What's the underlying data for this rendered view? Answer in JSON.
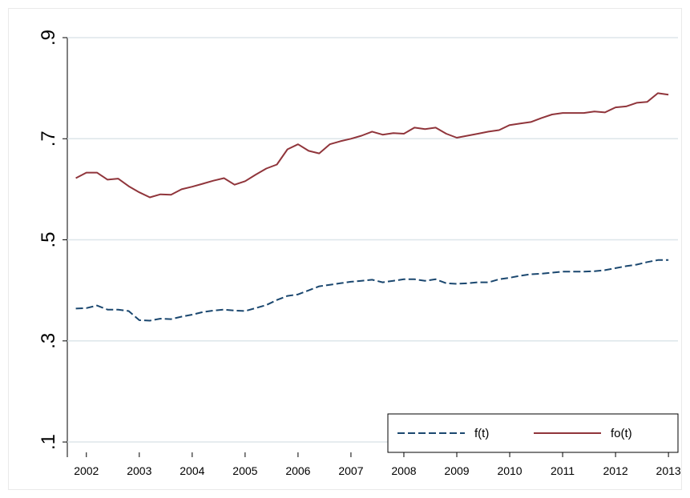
{
  "chart_data": {
    "type": "line",
    "x": [
      2001.8,
      2002,
      2002.2,
      2002.4,
      2002.6,
      2002.8,
      2003,
      2003.2,
      2003.4,
      2003.6,
      2003.8,
      2004,
      2004.2,
      2004.4,
      2004.6,
      2004.8,
      2005,
      2005.2,
      2005.4,
      2005.6,
      2005.8,
      2006,
      2006.2,
      2006.4,
      2006.6,
      2006.8,
      2007,
      2007.2,
      2007.4,
      2007.6,
      2007.8,
      2008,
      2008.2,
      2008.4,
      2008.6,
      2008.8,
      2009,
      2009.2,
      2009.4,
      2009.6,
      2009.8,
      2010,
      2010.2,
      2010.4,
      2010.6,
      2010.8,
      2011,
      2011.2,
      2011.4,
      2011.6,
      2011.8,
      2012,
      2012.2,
      2012.4,
      2012.6,
      2012.8,
      2013
    ],
    "series": [
      {
        "name": "f(t)",
        "color": "#1a476f",
        "dashed": true,
        "values": [
          0.364,
          0.365,
          0.37,
          0.362,
          0.362,
          0.359,
          0.341,
          0.34,
          0.344,
          0.343,
          0.348,
          0.352,
          0.357,
          0.36,
          0.362,
          0.36,
          0.359,
          0.365,
          0.371,
          0.381,
          0.389,
          0.392,
          0.4,
          0.408,
          0.411,
          0.414,
          0.417,
          0.419,
          0.421,
          0.416,
          0.419,
          0.422,
          0.422,
          0.419,
          0.422,
          0.414,
          0.413,
          0.414,
          0.416,
          0.416,
          0.422,
          0.425,
          0.429,
          0.432,
          0.433,
          0.435,
          0.437,
          0.437,
          0.437,
          0.438,
          0.44,
          0.444,
          0.448,
          0.451,
          0.456,
          0.46,
          0.46
        ]
      },
      {
        "name": "fo(t)",
        "color": "#90353b",
        "dashed": false,
        "values": [
          0.622,
          0.633,
          0.633,
          0.619,
          0.621,
          0.606,
          0.594,
          0.584,
          0.59,
          0.589,
          0.6,
          0.605,
          0.611,
          0.617,
          0.622,
          0.609,
          0.616,
          0.629,
          0.641,
          0.649,
          0.679,
          0.689,
          0.676,
          0.671,
          0.689,
          0.695,
          0.7,
          0.706,
          0.714,
          0.708,
          0.711,
          0.71,
          0.722,
          0.719,
          0.722,
          0.71,
          0.702,
          0.706,
          0.71,
          0.714,
          0.717,
          0.727,
          0.73,
          0.733,
          0.741,
          0.748,
          0.751,
          0.751,
          0.751,
          0.754,
          0.752,
          0.762,
          0.764,
          0.771,
          0.773,
          0.79,
          0.787
        ]
      }
    ],
    "xlim": [
      2001.64,
      2013.18
    ],
    "xticks": [
      2002,
      2003,
      2004,
      2005,
      2006,
      2007,
      2008,
      2009,
      2010,
      2011,
      2012,
      2013
    ],
    "ylim": [
      0.07,
      0.9
    ],
    "yticks": [
      {
        "value": 0.1,
        "label": ".1"
      },
      {
        "value": 0.3,
        "label": ".3"
      },
      {
        "value": 0.5,
        "label": ".5"
      },
      {
        "value": 0.7,
        "label": ".7"
      },
      {
        "value": 0.9,
        "label": ".9"
      }
    ],
    "grid": true,
    "legend": "bottom-right"
  }
}
